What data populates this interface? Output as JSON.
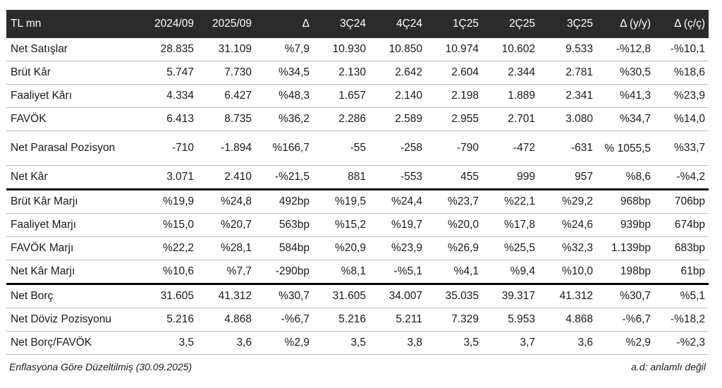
{
  "table": {
    "headers": [
      "TL mn",
      "2024/09",
      "2025/09",
      "Δ",
      "3Ç24",
      "4Ç24",
      "1Ç25",
      "2Ç25",
      "3Ç25",
      "Δ (y/y)",
      "Δ (ç/ç)"
    ],
    "rows": [
      [
        "Net Satışlar",
        "28.835",
        "31.109",
        "%7,9",
        "10.930",
        "10.850",
        "10.974",
        "10.602",
        "9.533",
        "-%12,8",
        "-%10,1"
      ],
      [
        "Brüt Kâr",
        "5.747",
        "7.730",
        "%34,5",
        "2.130",
        "2.642",
        "2.604",
        "2.344",
        "2.781",
        "%30,5",
        "%18,6"
      ],
      [
        "Faaliyet Kârı",
        "4.334",
        "6.427",
        "%48,3",
        "1.657",
        "2.140",
        "2.198",
        "1.889",
        "2.341",
        "%41,3",
        "%23,9"
      ],
      [
        "FAVÖK",
        "6.413",
        "8.735",
        "%36,2",
        "2.286",
        "2.589",
        "2.955",
        "2.701",
        "3.080",
        "%34,7",
        "%14,0"
      ],
      [
        "Net Parasal Pozisyon",
        "-710",
        "-1.894",
        "%166,7",
        "-55",
        "-258",
        "-790",
        "-472",
        "-631",
        "% 1055,5",
        "%33,7"
      ],
      [
        "Net Kâr",
        "3.071",
        "2.410",
        "-%21,5",
        "881",
        "-553",
        "455",
        "999",
        "957",
        "%8,6",
        "-%4,2"
      ],
      [
        "Brüt Kâr Marjı",
        "%19,9",
        "%24,8",
        "492bp",
        "%19,5",
        "%24,4",
        "%23,7",
        "%22,1",
        "%29,2",
        "968bp",
        "706bp"
      ],
      [
        "Faaliyet Marjı",
        "%15,0",
        "%20,7",
        "563bp",
        "%15,2",
        "%19,7",
        "%20,0",
        "%17,8",
        "%24,6",
        "939bp",
        "674bp"
      ],
      [
        "FAVÖK Marjı",
        "%22,2",
        "%28,1",
        "584bp",
        "%20,9",
        "%23,9",
        "%26,9",
        "%25,5",
        "%32,3",
        "1.139bp",
        "683bp"
      ],
      [
        "Net Kâr Marjı",
        "%10,6",
        "%7,7",
        "-290bp",
        "%8,1",
        "-%5,1",
        "%4,1",
        "%9,4",
        "%10,0",
        "198bp",
        "61bp"
      ],
      [
        "Net Borç",
        "31.605",
        "41.312",
        "%30,7",
        "31.605",
        "34.007",
        "35.035",
        "39.317",
        "41.312",
        "%30,7",
        "%5,1"
      ],
      [
        "Net Döviz Pozisyonu",
        "5.216",
        "4.868",
        "-%6,7",
        "5.216",
        "5.211",
        "7.329",
        "5.953",
        "4.868",
        "-%6,7",
        "-%18,2"
      ],
      [
        "Net Borç/FAVÖK",
        "3,5",
        "3,6",
        "%2,9",
        "3,5",
        "3,8",
        "3,5",
        "3,7",
        "3,6",
        "%2,9",
        "-%2,3"
      ]
    ]
  },
  "footer": {
    "left": "Enflasyona Göre Düzeltilmiş (30.09.2025)",
    "right": "a.d: anlamlı değil"
  },
  "colors": {
    "header_bg": "#2b2b2b",
    "header_text": "#ffffff",
    "row_border": "#bdbdbd",
    "section_border": "#000000"
  }
}
